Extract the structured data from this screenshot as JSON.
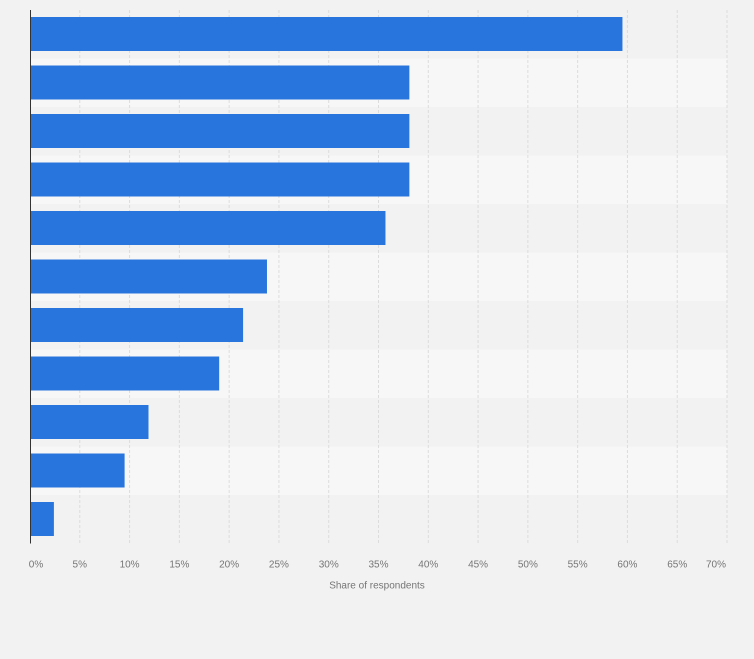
{
  "chart_data": {
    "type": "bar",
    "orientation": "horizontal",
    "title": "",
    "xlabel": "Share of respondents",
    "ylabel": "",
    "xlim": [
      0,
      70
    ],
    "x_ticks": [
      0,
      5,
      10,
      15,
      20,
      25,
      30,
      35,
      40,
      45,
      50,
      55,
      60,
      65,
      70
    ],
    "x_tick_labels": [
      "0%",
      "5%",
      "10%",
      "15%",
      "20%",
      "25%",
      "30%",
      "35%",
      "40%",
      "45%",
      "50%",
      "55%",
      "60%",
      "65%",
      "70%"
    ],
    "categories": [
      "",
      "",
      "",
      "",
      "",
      "",
      "",
      "",
      "",
      "",
      ""
    ],
    "values": [
      59.5,
      38.1,
      38.1,
      38.1,
      35.7,
      23.8,
      21.4,
      19,
      11.9,
      9.5,
      2.4
    ],
    "grid": true,
    "colors": {
      "bar": "#2876dd",
      "band_dark": "#f2f2f2",
      "band_light": "#f7f7f7",
      "grid": "#dcdcdc",
      "axis": "#333333"
    }
  }
}
